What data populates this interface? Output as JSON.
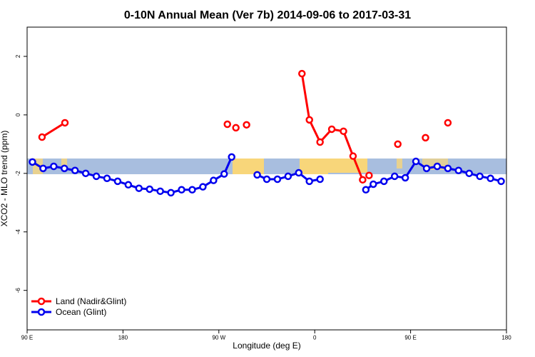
{
  "chart_data": {
    "type": "line",
    "title": "0-10N Annual Mean (Ver 7b)   2014-09-06 to 2017-03-31",
    "x_label": "Longitude (deg E)",
    "y_label": "XCO2 - MLO trend (ppm)",
    "xlim": [
      90,
      540
    ],
    "ylim": [
      -7.35,
      3
    ],
    "xticks": [
      {
        "value": 90,
        "label": "90 E"
      },
      {
        "value": 180,
        "label": "180"
      },
      {
        "value": 270,
        "label": "90 W"
      },
      {
        "value": 360,
        "label": "0"
      },
      {
        "value": 450,
        "label": "90 E"
      },
      {
        "value": 540,
        "label": "180"
      }
    ],
    "yticks": [
      -6,
      -4,
      -2,
      0,
      2
    ],
    "legend": "bottom-left",
    "series": [
      {
        "name": "Land (Nadir&Glint)",
        "color": "#ff0000",
        "x": [
          104,
          125.5,
          null,
          278,
          null,
          286,
          null,
          296,
          null,
          348,
          355,
          365,
          376,
          387,
          396,
          405,
          null,
          411,
          null,
          438,
          null,
          464,
          null,
          485
        ],
        "values": [
          -0.76,
          -0.27,
          null,
          -0.32,
          null,
          -0.44,
          null,
          -0.34,
          null,
          1.41,
          -0.17,
          -0.93,
          -0.49,
          -0.56,
          -1.41,
          -2.22,
          null,
          -2.07,
          null,
          -1.0,
          null,
          -0.78,
          null,
          -0.27
        ]
      },
      {
        "name": "Ocean (Glint)",
        "color": "#0000ee",
        "x": [
          95,
          105,
          115,
          125,
          135,
          145,
          155,
          165,
          175,
          185,
          195,
          205,
          215,
          225,
          235,
          245,
          255,
          265,
          275,
          282,
          null,
          306,
          315,
          325,
          335,
          345,
          355,
          365,
          null,
          408,
          415,
          425,
          435,
          445,
          455,
          465,
          475,
          485,
          495,
          505,
          515,
          525,
          535
        ],
        "values": [
          -1.61,
          -1.83,
          -1.76,
          -1.83,
          -1.9,
          -2.0,
          -2.1,
          -2.17,
          -2.27,
          -2.39,
          -2.51,
          -2.54,
          -2.61,
          -2.66,
          -2.56,
          -2.56,
          -2.46,
          -2.24,
          -2.02,
          -1.44,
          null,
          -2.05,
          -2.2,
          -2.2,
          -2.1,
          -1.98,
          -2.27,
          -2.2,
          null,
          -2.56,
          -2.37,
          -2.27,
          -2.1,
          -2.15,
          -1.59,
          -1.83,
          -1.76,
          -1.83,
          -1.9,
          -2.0,
          -2.1,
          -2.17,
          -2.27
        ]
      }
    ]
  }
}
